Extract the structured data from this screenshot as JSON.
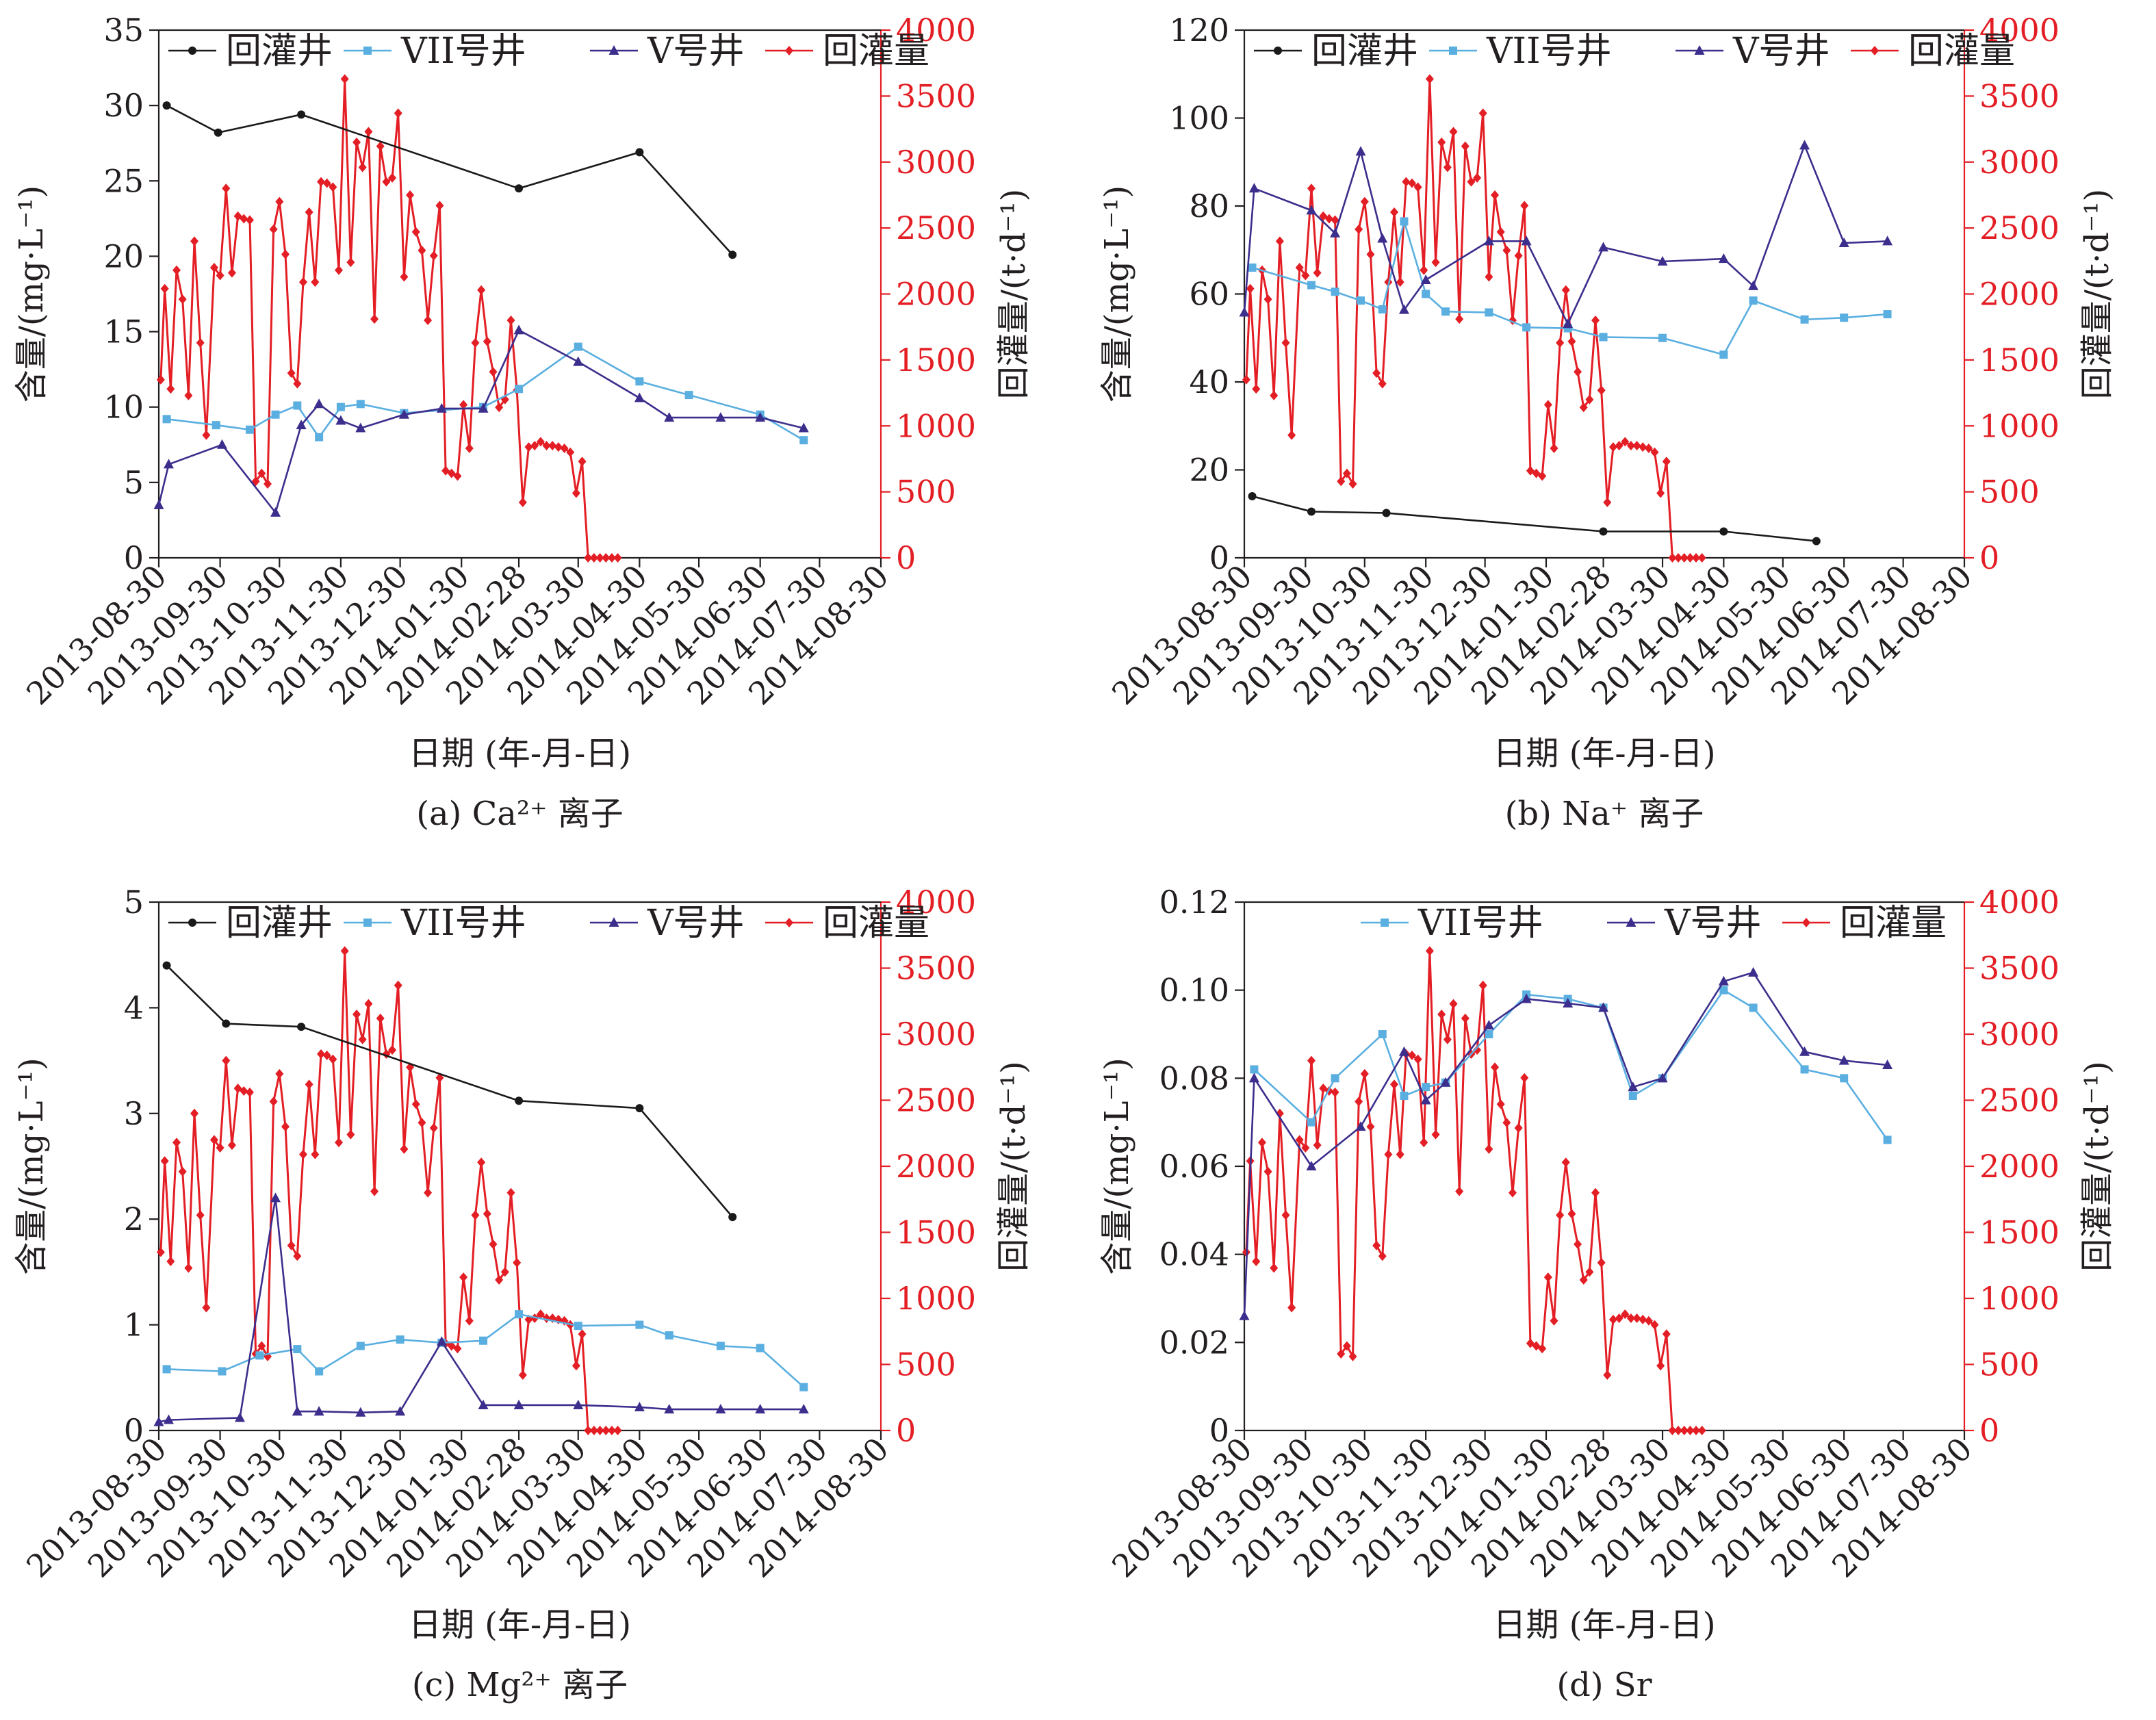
{
  "x_tick_labels": [
    "2013-08-30",
    "2013-09-30",
    "2013-10-30",
    "2013-11-30",
    "2013-12-30",
    "2014-01-30",
    "2014-02-28",
    "2014-03-30",
    "2014-04-30",
    "2014-05-30",
    "2014-06-30",
    "2014-07-30",
    "2014-08-30"
  ],
  "colors": {
    "well": "#1a1a1a",
    "vii": "#5aafe0",
    "v": "#3c2e8c",
    "recharge": "#e31e24"
  },
  "chart_data": [
    {
      "type": "line",
      "caption": "(a) Ca²⁺ 离子",
      "xlabel": "日期 (年-月-日)",
      "ylabel": "含量/(mg·L⁻¹)",
      "y2label": "回灌量/(t·d⁻¹)",
      "ylim": [
        0,
        35
      ],
      "yticks": [
        0,
        5,
        10,
        15,
        20,
        25,
        30,
        35
      ],
      "ytick_labels": [
        "0",
        "5",
        "10",
        "15",
        "20",
        "25",
        "30",
        "35"
      ],
      "y2lim": [
        0,
        4000
      ],
      "y2ticks": [
        0,
        500,
        1000,
        1500,
        2000,
        2500,
        3000,
        3500,
        4000
      ],
      "xlim": [
        "2013-08-30",
        "2014-08-30"
      ],
      "legend": [
        "回灌井",
        "VII号井",
        "V号井",
        "回灌量"
      ],
      "legend_position": "top",
      "series": [
        {
          "name": "回灌井",
          "key": "well",
          "axis": "left",
          "marker": "circle",
          "x": [
            "2013-09-03",
            "2013-09-29",
            "2013-11-10",
            "2014-02-28",
            "2014-04-30",
            "2014-06-16"
          ],
          "y": [
            30,
            28.2,
            29.4,
            24.5,
            26.9,
            20.1
          ]
        },
        {
          "name": "VII号井",
          "key": "vii",
          "axis": "left",
          "marker": "square",
          "x": [
            "2013-09-03",
            "2013-09-28",
            "2013-10-15",
            "2013-10-28",
            "2013-11-08",
            "2013-11-19",
            "2013-11-30",
            "2013-12-10",
            "2014-01-01",
            "2014-02-10",
            "2014-02-28",
            "2014-03-30",
            "2014-04-30",
            "2014-05-25",
            "2014-06-30",
            "2014-07-22"
          ],
          "y": [
            9.2,
            8.8,
            8.5,
            9.5,
            10.1,
            8.0,
            10.0,
            10.2,
            9.6,
            10.0,
            11.2,
            14.0,
            11.7,
            10.8,
            9.5,
            7.8
          ]
        },
        {
          "name": "V号井",
          "key": "v",
          "axis": "left",
          "marker": "triangle",
          "x": [
            "2013-08-30",
            "2013-09-04",
            "2013-10-01",
            "2013-10-28",
            "2013-11-10",
            "2013-11-19",
            "2013-11-30",
            "2013-12-10",
            "2014-01-01",
            "2014-01-20",
            "2014-02-10",
            "2014-02-28",
            "2014-03-30",
            "2014-04-30",
            "2014-05-15",
            "2014-06-10",
            "2014-06-30",
            "2014-07-22"
          ],
          "y": [
            3.5,
            6.2,
            7.5,
            3.0,
            8.8,
            10.2,
            9.1,
            8.6,
            9.5,
            9.9,
            9.9,
            15.1,
            13.0,
            10.6,
            9.3,
            9.3,
            9.3,
            8.6
          ]
        }
      ]
    },
    {
      "type": "line",
      "caption": "(b) Na⁺ 离子",
      "xlabel": "日期 (年-月-日)",
      "ylabel": "含量/(mg·L⁻¹)",
      "y2label": "回灌量/(t·d⁻¹)",
      "ylim": [
        0,
        120
      ],
      "yticks": [
        0,
        20,
        40,
        60,
        80,
        100,
        120
      ],
      "ytick_labels": [
        "0",
        "20",
        "40",
        "60",
        "80",
        "100",
        "120"
      ],
      "y2lim": [
        0,
        4000
      ],
      "y2ticks": [
        0,
        500,
        1000,
        1500,
        2000,
        2500,
        3000,
        3500,
        4000
      ],
      "xlim": [
        "2013-08-30",
        "2014-08-30"
      ],
      "legend": [
        "回灌井",
        "VII号井",
        "V号井",
        "回灌量"
      ],
      "legend_position": "top",
      "series": [
        {
          "name": "回灌井",
          "key": "well",
          "axis": "left",
          "marker": "circle",
          "x": [
            "2013-09-03",
            "2013-10-03",
            "2013-11-10",
            "2014-02-28",
            "2014-04-30",
            "2014-06-16"
          ],
          "y": [
            14,
            10.5,
            10.2,
            6.0,
            6.0,
            3.8
          ]
        },
        {
          "name": "VII号井",
          "key": "vii",
          "axis": "left",
          "marker": "square",
          "x": [
            "2013-09-03",
            "2013-10-03",
            "2013-10-15",
            "2013-10-28",
            "2013-11-08",
            "2013-11-19",
            "2013-11-30",
            "2013-12-10",
            "2014-01-01",
            "2014-01-20",
            "2014-02-10",
            "2014-02-28",
            "2014-03-30",
            "2014-04-30",
            "2014-05-15",
            "2014-06-10",
            "2014-06-30",
            "2014-07-22"
          ],
          "y": [
            66,
            62,
            60.5,
            58.5,
            56.5,
            76.5,
            60,
            56,
            55.8,
            52.4,
            52.2,
            50.2,
            50,
            46.2,
            58.5,
            54.2,
            54.6,
            55.4
          ]
        },
        {
          "name": "V号井",
          "key": "v",
          "axis": "left",
          "marker": "triangle",
          "x": [
            "2013-08-30",
            "2013-09-04",
            "2013-10-03",
            "2013-10-15",
            "2013-10-28",
            "2013-11-08",
            "2013-11-19",
            "2013-11-30",
            "2014-01-01",
            "2014-01-20",
            "2014-02-10",
            "2014-02-28",
            "2014-03-30",
            "2014-04-30",
            "2014-05-15",
            "2014-06-10",
            "2014-06-30",
            "2014-07-22"
          ],
          "y": [
            55.8,
            84,
            79,
            73.8,
            92.4,
            72.6,
            56.4,
            63.2,
            72,
            72,
            53.2,
            70.6,
            67.4,
            68,
            61.8,
            93.8,
            71.6,
            72
          ]
        }
      ]
    },
    {
      "type": "line",
      "caption": "(c) Mg²⁺ 离子",
      "xlabel": "日期 (年-月-日)",
      "ylabel": "含量/(mg·L⁻¹)",
      "y2label": "回灌量/(t·d⁻¹)",
      "ylim": [
        0,
        5
      ],
      "yticks": [
        0,
        1,
        2,
        3,
        4,
        5
      ],
      "ytick_labels": [
        "0",
        "1",
        "2",
        "3",
        "4",
        "5"
      ],
      "y2lim": [
        0,
        4000
      ],
      "y2ticks": [
        0,
        500,
        1000,
        1500,
        2000,
        2500,
        3000,
        3500,
        4000
      ],
      "xlim": [
        "2013-08-30",
        "2014-08-30"
      ],
      "legend": [
        "回灌井",
        "VII号井",
        "V号井",
        "回灌量"
      ],
      "legend_position": "top",
      "series": [
        {
          "name": "回灌井",
          "key": "well",
          "axis": "left",
          "marker": "circle",
          "x": [
            "2013-09-03",
            "2013-10-03",
            "2013-11-10",
            "2014-02-28",
            "2014-04-30",
            "2014-06-16"
          ],
          "y": [
            4.4,
            3.85,
            3.82,
            3.12,
            3.05,
            2.02
          ]
        },
        {
          "name": "VII号井",
          "key": "vii",
          "axis": "left",
          "marker": "square",
          "x": [
            "2013-09-03",
            "2013-10-01",
            "2013-10-20",
            "2013-11-08",
            "2013-11-19",
            "2013-12-10",
            "2013-12-30",
            "2014-01-20",
            "2014-02-10",
            "2014-02-28",
            "2014-03-30",
            "2014-04-30",
            "2014-05-15",
            "2014-06-10",
            "2014-06-30",
            "2014-07-22"
          ],
          "y": [
            0.58,
            0.56,
            0.71,
            0.77,
            0.56,
            0.8,
            0.86,
            0.83,
            0.85,
            1.1,
            0.99,
            1.0,
            0.9,
            0.8,
            0.78,
            0.41
          ]
        },
        {
          "name": "V号井",
          "key": "v",
          "axis": "left",
          "marker": "triangle",
          "x": [
            "2013-08-30",
            "2013-09-04",
            "2013-10-10",
            "2013-10-28",
            "2013-11-08",
            "2013-11-19",
            "2013-12-10",
            "2013-12-30",
            "2014-01-20",
            "2014-02-10",
            "2014-02-28",
            "2014-03-30",
            "2014-04-30",
            "2014-05-15",
            "2014-06-10",
            "2014-06-30",
            "2014-07-22"
          ],
          "y": [
            0.08,
            0.1,
            0.12,
            2.2,
            0.18,
            0.18,
            0.17,
            0.18,
            0.84,
            0.24,
            0.24,
            0.24,
            0.22,
            0.2,
            0.2,
            0.2,
            0.2
          ]
        }
      ]
    },
    {
      "type": "line",
      "caption": "(d) Sr",
      "xlabel": "日期 (年-月-日)",
      "ylabel": "含量/(mg·L⁻¹)",
      "y2label": "回灌量/(t·d⁻¹)",
      "ylim": [
        0,
        0.12
      ],
      "yticks": [
        0,
        0.02,
        0.04,
        0.06,
        0.08,
        0.1,
        0.12
      ],
      "ytick_labels": [
        "0",
        "0.02",
        "0.04",
        "0.06",
        "0.08",
        "0.10",
        "0.12"
      ],
      "y2lim": [
        0,
        4000
      ],
      "y2ticks": [
        0,
        500,
        1000,
        1500,
        2000,
        2500,
        3000,
        3500,
        4000
      ],
      "xlim": [
        "2013-08-30",
        "2014-08-30"
      ],
      "legend": [
        "VII号井",
        "V号井",
        "回灌量"
      ],
      "legend_position": "top",
      "series": [
        {
          "name": "VII号井",
          "key": "vii",
          "axis": "left",
          "marker": "square",
          "x": [
            "2013-09-04",
            "2013-10-03",
            "2013-10-15",
            "2013-11-08",
            "2013-11-19",
            "2013-11-30",
            "2013-12-10",
            "2014-01-01",
            "2014-01-20",
            "2014-02-10",
            "2014-02-28",
            "2014-03-15",
            "2014-03-30",
            "2014-04-30",
            "2014-05-15",
            "2014-06-10",
            "2014-06-30",
            "2014-07-22"
          ],
          "y": [
            0.082,
            0.07,
            0.08,
            0.09,
            0.076,
            0.078,
            0.079,
            0.09,
            0.099,
            0.098,
            0.096,
            0.076,
            0.08,
            0.1,
            0.096,
            0.082,
            0.08,
            0.066
          ]
        },
        {
          "name": "V号井",
          "key": "v",
          "axis": "left",
          "marker": "triangle",
          "x": [
            "2013-08-30",
            "2013-09-04",
            "2013-10-03",
            "2013-10-28",
            "2013-11-19",
            "2013-11-30",
            "2013-12-10",
            "2014-01-01",
            "2014-01-20",
            "2014-02-10",
            "2014-02-28",
            "2014-03-15",
            "2014-03-30",
            "2014-04-30",
            "2014-05-15",
            "2014-06-10",
            "2014-06-30",
            "2014-07-22"
          ],
          "y": [
            0.026,
            0.08,
            0.06,
            0.069,
            0.086,
            0.075,
            0.079,
            0.092,
            0.098,
            0.097,
            0.096,
            0.078,
            0.08,
            0.102,
            0.104,
            0.086,
            0.084,
            0.083
          ]
        }
      ]
    }
  ],
  "recharge": {
    "name": "回灌量",
    "x": [
      "2013-08-31",
      "2013-09-02",
      "2013-09-05",
      "2013-09-08",
      "2013-09-11",
      "2013-09-14",
      "2013-09-17",
      "2013-09-20",
      "2013-09-23",
      "2013-09-27",
      "2013-09-30",
      "2013-10-03",
      "2013-10-06",
      "2013-10-09",
      "2013-10-12",
      "2013-10-15",
      "2013-10-18",
      "2013-10-21",
      "2013-10-24",
      "2013-10-27",
      "2013-10-30",
      "2013-11-02",
      "2013-11-05",
      "2013-11-08",
      "2013-11-11",
      "2013-11-14",
      "2013-11-17",
      "2013-11-20",
      "2013-11-23",
      "2013-11-26",
      "2013-11-29",
      "2013-12-02",
      "2013-12-05",
      "2013-12-08",
      "2013-12-11",
      "2013-12-14",
      "2013-12-17",
      "2013-12-20",
      "2013-12-23",
      "2013-12-26",
      "2013-12-29",
      "2014-01-01",
      "2014-01-04",
      "2014-01-07",
      "2014-01-10",
      "2014-01-13",
      "2014-01-16",
      "2014-01-19",
      "2014-01-22",
      "2014-01-25",
      "2014-01-28",
      "2014-01-31",
      "2014-02-03",
      "2014-02-06",
      "2014-02-09",
      "2014-02-12",
      "2014-02-15",
      "2014-02-18",
      "2014-02-21",
      "2014-02-24",
      "2014-02-27",
      "2014-03-02",
      "2014-03-05",
      "2014-03-08",
      "2014-03-11",
      "2014-03-14",
      "2014-03-17",
      "2014-03-20",
      "2014-03-23",
      "2014-03-26",
      "2014-03-29",
      "2014-04-01",
      "2014-04-04",
      "2014-04-07",
      "2014-04-10",
      "2014-04-13",
      "2014-04-16",
      "2014-04-19"
    ],
    "y": [
      1350,
      2040,
      1280,
      2180,
      1960,
      1230,
      2400,
      1630,
      930,
      2200,
      2140,
      2800,
      2160,
      2590,
      2570,
      2560,
      580,
      640,
      560,
      2490,
      2700,
      2300,
      1400,
      1320,
      2090,
      2620,
      2090,
      2850,
      2840,
      2810,
      2180,
      3630,
      2240,
      3150,
      2960,
      3230,
      1810,
      3120,
      2850,
      2880,
      3370,
      2130,
      2750,
      2470,
      2330,
      1800,
      2290,
      2670,
      660,
      640,
      620,
      1160,
      830,
      1630,
      2030,
      1640,
      1410,
      1140,
      1200,
      1800,
      1270,
      420,
      840,
      850,
      880,
      850,
      850,
      840,
      830,
      800,
      490,
      730,
      0,
      0,
      0,
      0,
      0,
      0
    ]
  }
}
